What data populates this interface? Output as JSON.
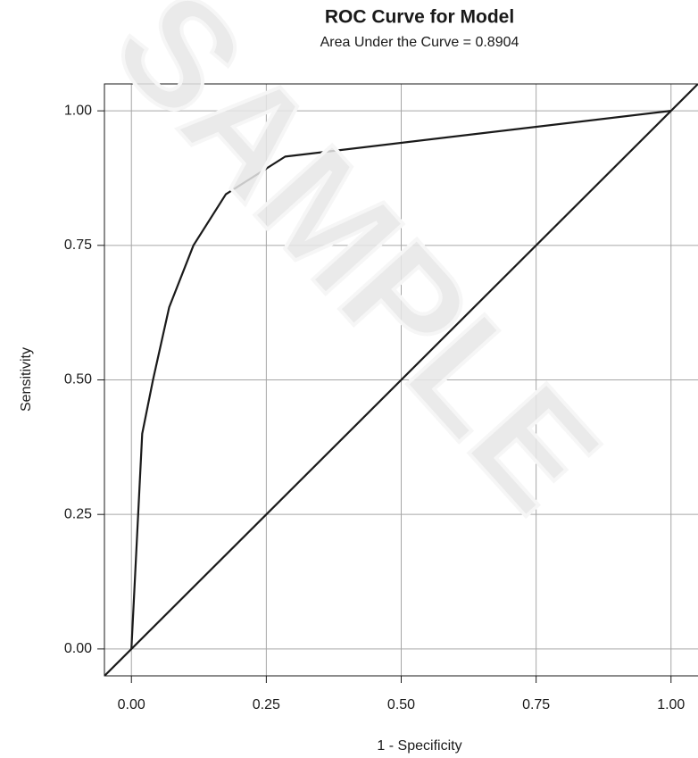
{
  "chart_data": {
    "type": "line",
    "title": "ROC Curve for Model",
    "subtitle": "Area Under the Curve = 0.8904",
    "x_label": "1 - Specificity",
    "y_label": "Sensitivity",
    "watermark": "SAMPLE",
    "series": [
      {
        "color": "#1a1a1a",
        "x": [
          0,
          0.02,
          0.04,
          0.07,
          0.115,
          0.175,
          0.285,
          1
        ],
        "values": [
          0,
          0.4,
          0.5,
          0.635,
          0.75,
          0.845,
          0.915,
          1
        ]
      },
      {
        "color": "#1a1a1a",
        "x": [
          -0.05,
          1.05
        ],
        "values": [
          -0.05,
          1.05
        ]
      }
    ],
    "xlim": [
      -0.05,
      1.05
    ],
    "ylim": [
      -0.05,
      1.05
    ],
    "xticks": [
      {
        "value": 0,
        "label": "0.00"
      },
      {
        "value": 0.25,
        "label": "0.25"
      },
      {
        "value": 0.5,
        "label": "0.50"
      },
      {
        "value": 0.75,
        "label": "0.75"
      },
      {
        "value": 1,
        "label": "1.00"
      }
    ],
    "yticks": [
      {
        "value": 0,
        "label": "0.00"
      },
      {
        "value": 0.25,
        "label": "0.25"
      },
      {
        "value": 0.5,
        "label": "0.50"
      },
      {
        "value": 0.75,
        "label": "0.75"
      },
      {
        "value": 1,
        "label": "1.00"
      }
    ],
    "grid": true
  }
}
